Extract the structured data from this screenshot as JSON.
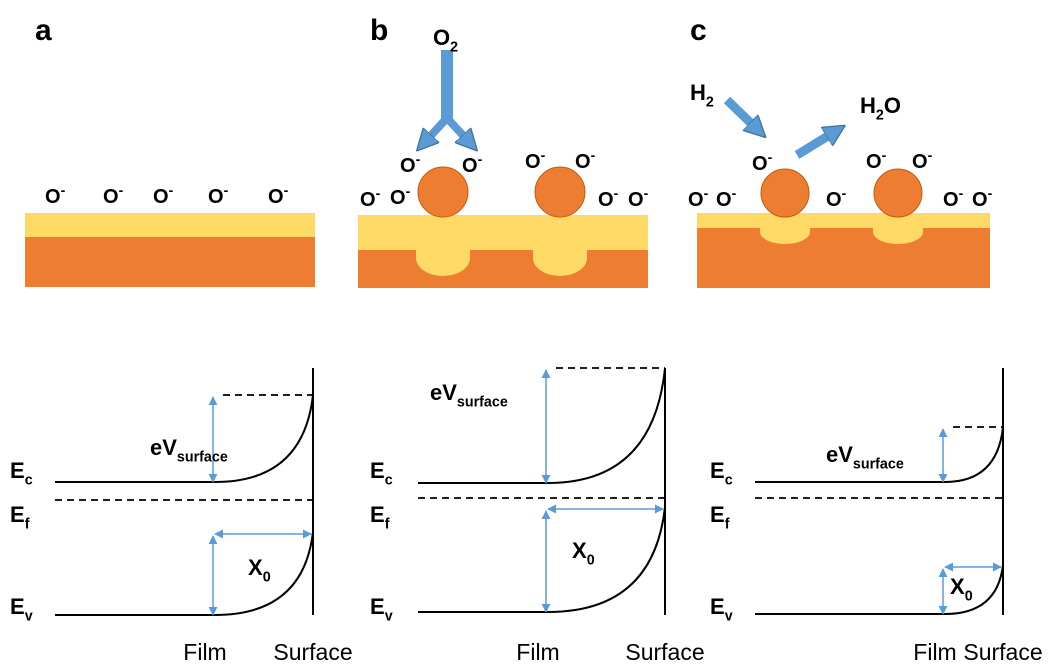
{
  "panels": [
    {
      "label": "a",
      "ions": [
        {
          "base": "O",
          "sup": "-"
        },
        {
          "base": "O",
          "sup": "-"
        },
        {
          "base": "O",
          "sup": "-"
        },
        {
          "base": "O",
          "sup": "-"
        },
        {
          "base": "O",
          "sup": "-"
        }
      ],
      "band": {
        "ec": {
          "base": "E",
          "sub": "c"
        },
        "ef": {
          "base": "E",
          "sub": "f"
        },
        "ev": {
          "base": "E",
          "sub": "v"
        },
        "barrier": {
          "base": "eV",
          "sub": "surface"
        },
        "width": {
          "base": "X",
          "sub": "0"
        },
        "film": "Film",
        "surface": "Surface"
      }
    },
    {
      "label": "b",
      "gas": [
        {
          "base": "O",
          "sub": "2"
        }
      ],
      "ions": [
        {
          "base": "O",
          "sup": "-"
        },
        {
          "base": "O",
          "sup": "-"
        },
        {
          "base": "O",
          "sup": "-"
        },
        {
          "base": "O",
          "sup": "-"
        },
        {
          "base": "O",
          "sup": "-"
        },
        {
          "base": "O",
          "sup": "-"
        },
        {
          "base": "O",
          "sup": "-"
        },
        {
          "base": "O",
          "sup": "-"
        }
      ],
      "band": {
        "ec": {
          "base": "E",
          "sub": "c"
        },
        "ef": {
          "base": "E",
          "sub": "f"
        },
        "ev": {
          "base": "E",
          "sub": "v"
        },
        "barrier": {
          "base": "eV",
          "sub": "surface"
        },
        "width": {
          "base": "X",
          "sub": "0"
        },
        "film": "Film",
        "surface": "Surface"
      }
    },
    {
      "label": "c",
      "gas": [
        {
          "base": "H",
          "sub": "2"
        },
        {
          "base": "H",
          "sub": "2",
          "tail": "O"
        }
      ],
      "ions": [
        {
          "base": "O",
          "sup": "-"
        },
        {
          "base": "O",
          "sup": "-"
        },
        {
          "base": "O",
          "sup": "-"
        },
        {
          "base": "O",
          "sup": "-"
        },
        {
          "base": "O",
          "sup": "-"
        },
        {
          "base": "O",
          "sup": "-"
        },
        {
          "base": "O",
          "sup": "-"
        },
        {
          "base": "O",
          "sup": "-"
        }
      ],
      "band": {
        "ec": {
          "base": "E",
          "sub": "c"
        },
        "ef": {
          "base": "E",
          "sub": "f"
        },
        "ev": {
          "base": "E",
          "sub": "v"
        },
        "barrier": {
          "base": "eV",
          "sub": "surface"
        },
        "width": {
          "base": "X",
          "sub": "0"
        },
        "film": "Film",
        "surface": "Surface"
      }
    }
  ]
}
